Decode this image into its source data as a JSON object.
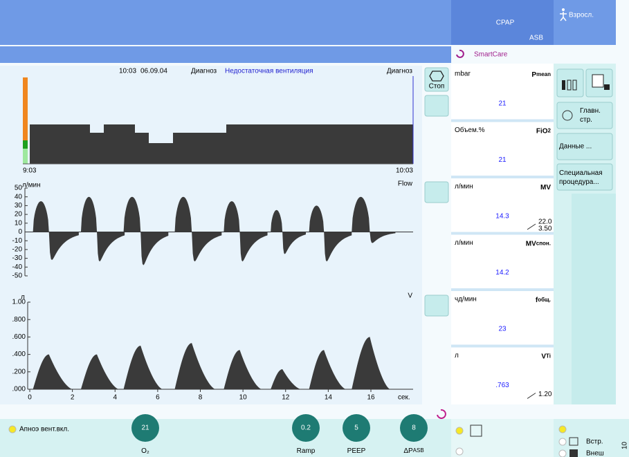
{
  "header": {
    "mode": "CPAP",
    "submode": "ASB",
    "patient": "Взросл.",
    "smartcare": "SmartCare"
  },
  "diagnosis": {
    "time": "10:03",
    "date": "06.09.04",
    "label": "Диагноз",
    "text": "Недостаточная вентиляция",
    "title": "Диагноз",
    "start": "9:03",
    "end": "10:03"
  },
  "buttons": {
    "stop": "Стоп"
  },
  "flow_chart": {
    "unit": "л/мин",
    "title": "Flow",
    "ylim": [
      -50,
      50
    ],
    "yticks": [
      50,
      40,
      30,
      20,
      10,
      0,
      -10,
      -20,
      -30,
      -40,
      -50
    ],
    "starts": [
      0.15,
      2.4,
      4.4,
      6.8,
      9.1,
      11.3,
      13.1,
      15.1
    ],
    "ti": [
      0.75,
      0.75,
      0.8,
      0.8,
      0.75,
      0.55,
      0.7,
      0.85
    ],
    "te": [
      1.4,
      1.3,
      1.3,
      1.4,
      1.3,
      1.1,
      1.3,
      1.2
    ],
    "peaks": [
      35,
      40,
      40,
      40,
      35,
      25,
      30,
      40
    ],
    "troughs": [
      -38,
      -40,
      -45,
      -40,
      -40,
      -30,
      -40,
      -15
    ]
  },
  "volume_chart": {
    "unit": "л",
    "title": "V",
    "ylim": [
      0,
      1
    ],
    "yticks": [
      {
        "value": 1,
        "label": "1.00"
      },
      {
        "value": 0.8,
        "label": ".800"
      },
      {
        "value": 0.6,
        "label": ".600"
      },
      {
        "value": 0.4,
        "label": ".400"
      },
      {
        "value": 0.2,
        "label": ".200"
      },
      {
        "value": 0,
        "label": ".000"
      }
    ],
    "xlim": [
      0,
      16
    ],
    "xticks": [
      0,
      2,
      4,
      6,
      8,
      10,
      12,
      14,
      16
    ],
    "xlabel": "сек.",
    "peaks": [
      0.4,
      0.4,
      0.5,
      0.53,
      0.45,
      0.23,
      0.45,
      0.6
    ]
  },
  "measurements": [
    {
      "unit": "mbar",
      "name": "P",
      "sub": "mean",
      "value": "21"
    },
    {
      "unit": "Объем.%",
      "name": "FiO",
      "sub": "2",
      "value": "21"
    },
    {
      "unit": "л/мин",
      "name": "MV",
      "sub": "",
      "value": "14.3",
      "extra_top": "22.0",
      "extra_bottom": "3.50"
    },
    {
      "unit": "л/мин",
      "name": "MV",
      "sub": "спон.",
      "value": "14.2"
    },
    {
      "unit": "чд/мин",
      "name": "f",
      "sub": "общ.",
      "value": "23"
    },
    {
      "unit": "л",
      "name": "V",
      "sub": "Ti",
      "value": ".763",
      "extra_bottom": "1.20"
    }
  ],
  "side_buttons": [
    "Главн. стр.",
    "Данные ...",
    "Специальная процедура..."
  ],
  "settings": [
    {
      "value": "21",
      "label": "O₂"
    },
    {
      "value": "0.2",
      "label": "Ramp"
    },
    {
      "value": "5",
      "label": "PEEP"
    },
    {
      "value": "8",
      "label": "ΔP",
      "sub": "ASB"
    }
  ],
  "alarm": "Апноэ вент.вкл.",
  "sources": [
    "Встр.",
    "Внеш"
  ],
  "corner": "10"
}
